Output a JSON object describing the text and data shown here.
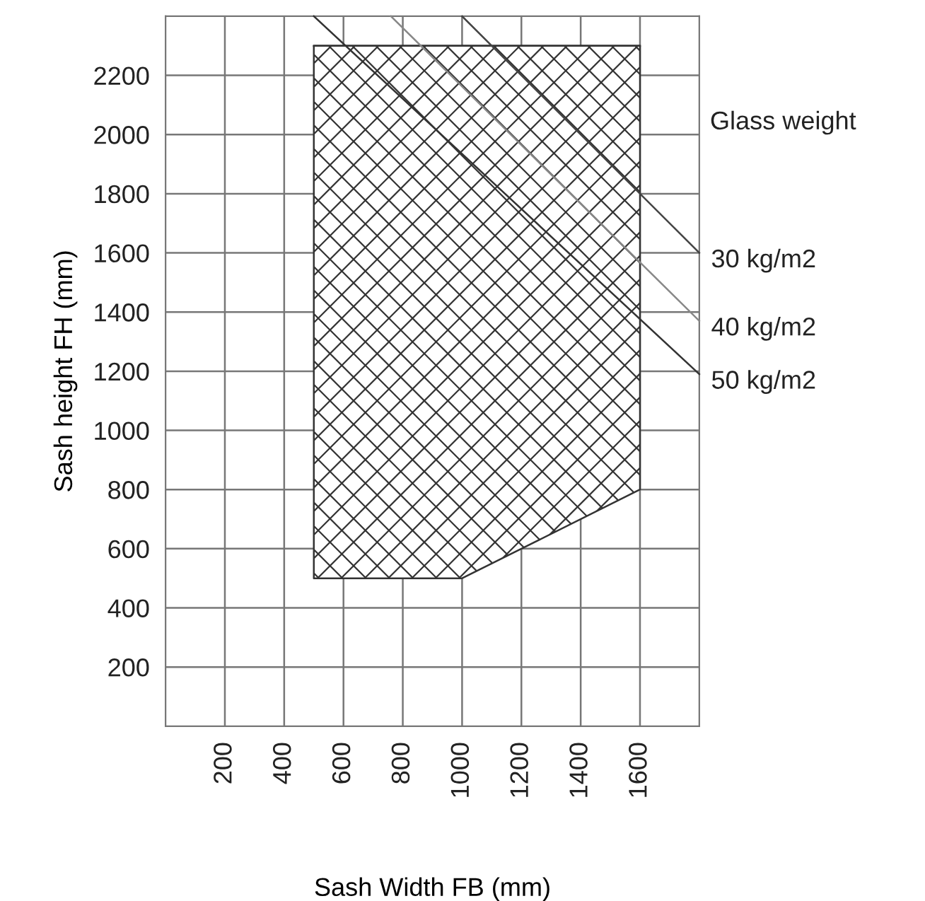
{
  "chart_data": {
    "type": "line",
    "xlabel": "Sash Width FB (mm)",
    "ylabel": "Sash height FH (mm)",
    "legend_title": "Glass weight",
    "xlim": [
      0,
      1800
    ],
    "ylim": [
      0,
      2400
    ],
    "xticks": [
      200,
      400,
      600,
      800,
      1000,
      1200,
      1400,
      1600
    ],
    "yticks": [
      200,
      400,
      600,
      800,
      1000,
      1200,
      1400,
      1600,
      1800,
      2000,
      2200
    ],
    "grid": true,
    "series": [
      {
        "color": "#333333",
        "x": [
          500,
          1000,
          1200,
          1600
        ],
        "values": [
          2300,
          2300,
          2300,
          2300
        ],
        "lower": [
          500,
          500,
          600,
          800
        ],
        "upper": [
          2300,
          2300,
          2300,
          2300
        ]
      },
      {
        "name": "30 kg/m2",
        "color": "#444444",
        "x": [
          1000,
          1800
        ],
        "values": [
          2400,
          1600
        ]
      },
      {
        "name": "40 kg/m2",
        "color": "#888888",
        "x": [
          760,
          1800
        ],
        "values": [
          2400,
          1370
        ]
      },
      {
        "name": "50 kg/m2",
        "color": "#333333",
        "x": [
          500,
          1800
        ],
        "values": [
          2400,
          1190
        ]
      }
    ]
  }
}
